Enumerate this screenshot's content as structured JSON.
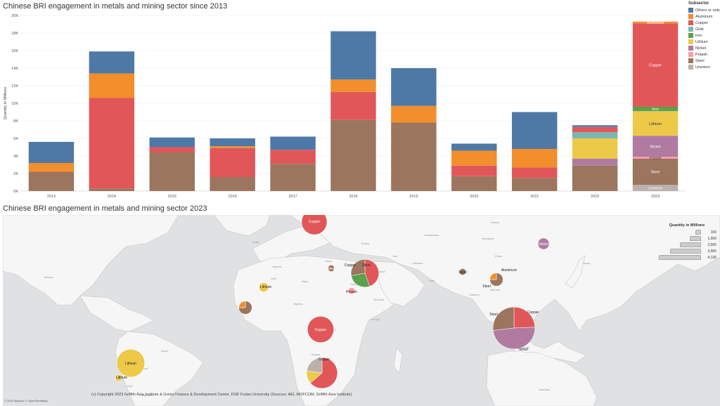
{
  "chart_data": [
    {
      "type": "bar",
      "stacked": true,
      "title": "Chinese BRI engagement in metals and mining sector since 2013",
      "xlabel": "",
      "ylabel": "Quantity in Millions",
      "ylim": [
        0,
        20000
      ],
      "yticks": [
        "0K",
        "2K",
        "4K",
        "6K",
        "8K",
        "10K",
        "12K",
        "14K",
        "16K",
        "18K",
        "20K"
      ],
      "grid": true,
      "legend_position": "right",
      "categories": [
        "2013",
        "2014",
        "2015",
        "2016",
        "2017",
        "2018",
        "2019",
        "2020",
        "2021",
        "2022",
        "2023"
      ],
      "series": [
        {
          "name": "Uranium",
          "color": "#bab0ac",
          "values": [
            0,
            0,
            0,
            0,
            0,
            0,
            0,
            0,
            0,
            0,
            700
          ]
        },
        {
          "name": "Steel",
          "color": "#9c755f",
          "values": [
            2200,
            300,
            4400,
            1600,
            3100,
            8100,
            7800,
            1700,
            1500,
            2900,
            3000
          ]
        },
        {
          "name": "Potash",
          "color": "#ff9da7",
          "values": [
            0,
            0,
            0,
            0,
            0,
            0,
            0,
            0,
            0,
            0,
            200
          ]
        },
        {
          "name": "Nickel",
          "color": "#b07aa1",
          "values": [
            0,
            0,
            0,
            0,
            0,
            0,
            0,
            0,
            0,
            800,
            2400
          ]
        },
        {
          "name": "Lithium",
          "color": "#edc948",
          "values": [
            0,
            0,
            0,
            0,
            0,
            0,
            0,
            0,
            0,
            2300,
            2800
          ]
        },
        {
          "name": "Iron",
          "color": "#59a14f",
          "values": [
            0,
            0,
            0,
            0,
            0,
            0,
            0,
            0,
            0,
            0,
            500
          ]
        },
        {
          "name": "Gold",
          "color": "#76b7b2",
          "values": [
            0,
            0,
            0,
            0,
            0,
            0,
            0,
            0,
            0,
            700,
            0
          ]
        },
        {
          "name": "Copper",
          "color": "#e15759",
          "values": [
            0,
            10300,
            600,
            3300,
            1600,
            3200,
            0,
            1200,
            1200,
            600,
            9500
          ]
        },
        {
          "name": "Aluminum",
          "color": "#f28e2b",
          "values": [
            1000,
            2800,
            0,
            200,
            0,
            1400,
            1900,
            1700,
            2100,
            0,
            200
          ]
        },
        {
          "name": "Others or unknown",
          "color": "#4e79a7",
          "values": [
            2400,
            2500,
            1100,
            900,
            1500,
            5500,
            4300,
            800,
            4200,
            200,
            0
          ]
        }
      ],
      "segment_labels_2023": [
        "Aluminum",
        "Copper",
        "Iron",
        "Lithium",
        "Nickel",
        "Potash",
        "Steel",
        "Uranium"
      ]
    },
    {
      "type": "bubble-map",
      "title": "Chinese BRI engagement in metals and mining sector 2023",
      "size_legend": {
        "title": "Quantity in Millions",
        "values": [
          100,
          1000,
          2000,
          3000,
          4130
        ],
        "labels": [
          "100",
          "1,000",
          "2,000",
          "3,000",
          "4,130"
        ]
      },
      "country_labels": [
        "Libya",
        "Algeria",
        "Egypt",
        "Mali",
        "Niger",
        "Turkey",
        "Iran",
        "Saudi Arabia",
        "India",
        "China",
        "Mongolia",
        "Kazakhstan",
        "Russia",
        "Brazil",
        "Peru",
        "Bolivia",
        "Chile",
        "Argentina",
        "DRC",
        "Angola",
        "Namibia",
        "Sudan",
        "Ethiopia",
        "Kenya",
        "Nigeria",
        "Australia",
        "Indonesia",
        "Mexico",
        "Spain",
        "Japan",
        "Thailand",
        "Vietnam",
        "Pakistan"
      ],
      "point_labels": [
        "Copper",
        "Steel",
        "Copper",
        "Steel",
        "Potash",
        "Lithium",
        "Steel",
        "Aluminum",
        "Steel",
        "Nickel",
        "Copper",
        "Steel",
        "Nickel",
        "Copper",
        "Copper",
        "Lithium",
        "Lithium"
      ],
      "points": [
        {
          "location": "Serbia",
          "items": [
            {
              "subsector": "Copper",
              "value": 1500
            }
          ]
        },
        {
          "location": "Japan",
          "items": [
            {
              "subsector": "Nickel",
              "value": 300
            }
          ]
        },
        {
          "location": "Saudi Arabia",
          "items": [
            {
              "subsector": "Copper",
              "value": 800
            },
            {
              "subsector": "Iron",
              "value": 500
            },
            {
              "subsector": "Steel",
              "value": 500
            }
          ]
        },
        {
          "location": "Egypt",
          "items": [
            {
              "subsector": "Steel",
              "value": 100
            }
          ]
        },
        {
          "location": "Eritrea",
          "items": [
            {
              "subsector": "Potash",
              "value": 100
            }
          ]
        },
        {
          "location": "Mali",
          "items": [
            {
              "subsector": "Lithium",
              "value": 200
            }
          ]
        },
        {
          "location": "Guinea",
          "items": [
            {
              "subsector": "Steel",
              "value": 300
            },
            {
              "subsector": "Aluminum",
              "value": 100
            }
          ]
        },
        {
          "location": "Myanmar",
          "items": [
            {
              "subsector": "Steel",
              "value": 100
            }
          ]
        },
        {
          "location": "Vietnam",
          "items": [
            {
              "subsector": "Steel",
              "value": 300
            },
            {
              "subsector": "Aluminum",
              "value": 100
            }
          ]
        },
        {
          "location": "Indonesia",
          "items": [
            {
              "subsector": "Copper",
              "value": 1000
            },
            {
              "subsector": "Nickel",
              "value": 2000
            },
            {
              "subsector": "Steel",
              "value": 1100
            }
          ]
        },
        {
          "location": "DR Congo",
          "items": [
            {
              "subsector": "Copper",
              "value": 1600
            }
          ]
        },
        {
          "location": "Zambia",
          "items": [
            {
              "subsector": "Copper",
              "value": 1400
            },
            {
              "subsector": "Lithium",
              "value": 300
            },
            {
              "subsector": "Uranium",
              "value": 500
            }
          ]
        },
        {
          "location": "Argentina",
          "items": [
            {
              "subsector": "Lithium",
              "value": 1800
            }
          ]
        },
        {
          "location": "Chile",
          "items": [
            {
              "subsector": "Lithium",
              "value": 100
            }
          ]
        }
      ]
    }
  ],
  "credits": "(c) Copyright 2023 Griffith Asia Institute & Green Finance & Development Center, FISF Fudan University (Sources: AEI, MOFCOM, Griffith Asia Institute)",
  "osm": "© 2024 Mapbox © OpenStreetMap"
}
